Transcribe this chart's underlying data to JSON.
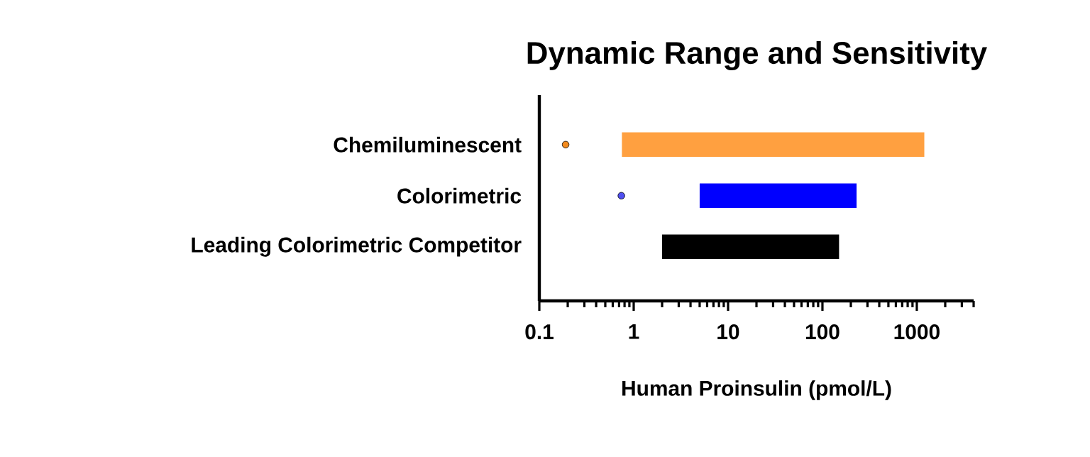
{
  "chart_data": {
    "type": "bar",
    "orientation": "horizontal",
    "title": "Dynamic Range and Sensitivity",
    "xlabel": "Human Proinsulin (pmol/L)",
    "categories": [
      "Chemiluminescent",
      "Colorimetric",
      "Leading Colorimetric Competitor"
    ],
    "log": "x",
    "xlim": [
      0.1,
      4000
    ],
    "xticks": [
      0.1,
      1,
      10,
      100,
      1000
    ],
    "series": [
      {
        "colors": [
          "#ffa040",
          "#0000ff",
          "#000000"
        ],
        "base": [
          0.75,
          5,
          2
        ],
        "values": [
          1200,
          225,
          148
        ]
      },
      {
        "type": "scatter",
        "colors": [
          "#f28a1e",
          "#4f4ff0",
          null
        ],
        "values": [
          0.19,
          0.74,
          null
        ]
      }
    ]
  }
}
